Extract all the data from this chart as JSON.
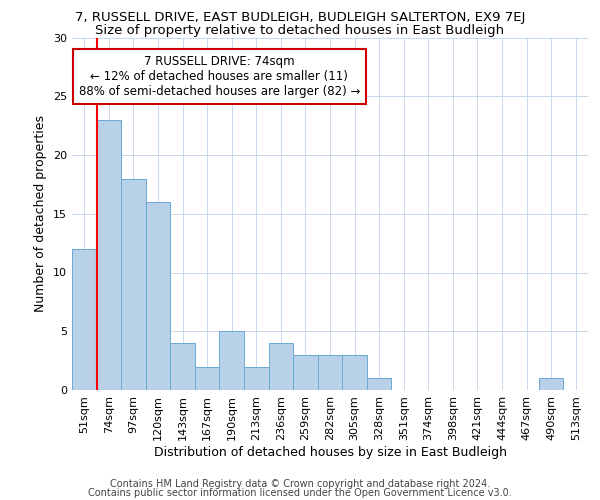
{
  "title1": "7, RUSSELL DRIVE, EAST BUDLEIGH, BUDLEIGH SALTERTON, EX9 7EJ",
  "title2": "Size of property relative to detached houses in East Budleigh",
  "xlabel": "Distribution of detached houses by size in East Budleigh",
  "ylabel": "Number of detached properties",
  "categories": [
    "51sqm",
    "74sqm",
    "97sqm",
    "120sqm",
    "143sqm",
    "167sqm",
    "190sqm",
    "213sqm",
    "236sqm",
    "259sqm",
    "282sqm",
    "305sqm",
    "328sqm",
    "351sqm",
    "374sqm",
    "398sqm",
    "421sqm",
    "444sqm",
    "467sqm",
    "490sqm",
    "513sqm"
  ],
  "values": [
    12,
    23,
    18,
    16,
    4,
    2,
    5,
    2,
    4,
    3,
    3,
    3,
    1,
    0,
    0,
    0,
    0,
    0,
    0,
    1,
    0
  ],
  "bar_color": "#b8d0e8",
  "bar_edge_color": "#6aaad4",
  "red_line_index": 1,
  "annotation_text": "7 RUSSELL DRIVE: 74sqm\n← 12% of detached houses are smaller (11)\n88% of semi-detached houses are larger (82) →",
  "annotation_box_color": "#ffffff",
  "annotation_box_edge": "#cc0000",
  "ylim": [
    0,
    30
  ],
  "yticks": [
    0,
    5,
    10,
    15,
    20,
    25,
    30
  ],
  "footer1": "Contains HM Land Registry data © Crown copyright and database right 2024.",
  "footer2": "Contains public sector information licensed under the Open Government Licence v3.0.",
  "bg_color": "#ffffff",
  "grid_color": "#c8d8ea",
  "title1_fontsize": 9.5,
  "title2_fontsize": 9.5,
  "xlabel_fontsize": 9,
  "ylabel_fontsize": 9,
  "tick_fontsize": 8,
  "footer_fontsize": 7,
  "annot_fontsize": 8.5
}
